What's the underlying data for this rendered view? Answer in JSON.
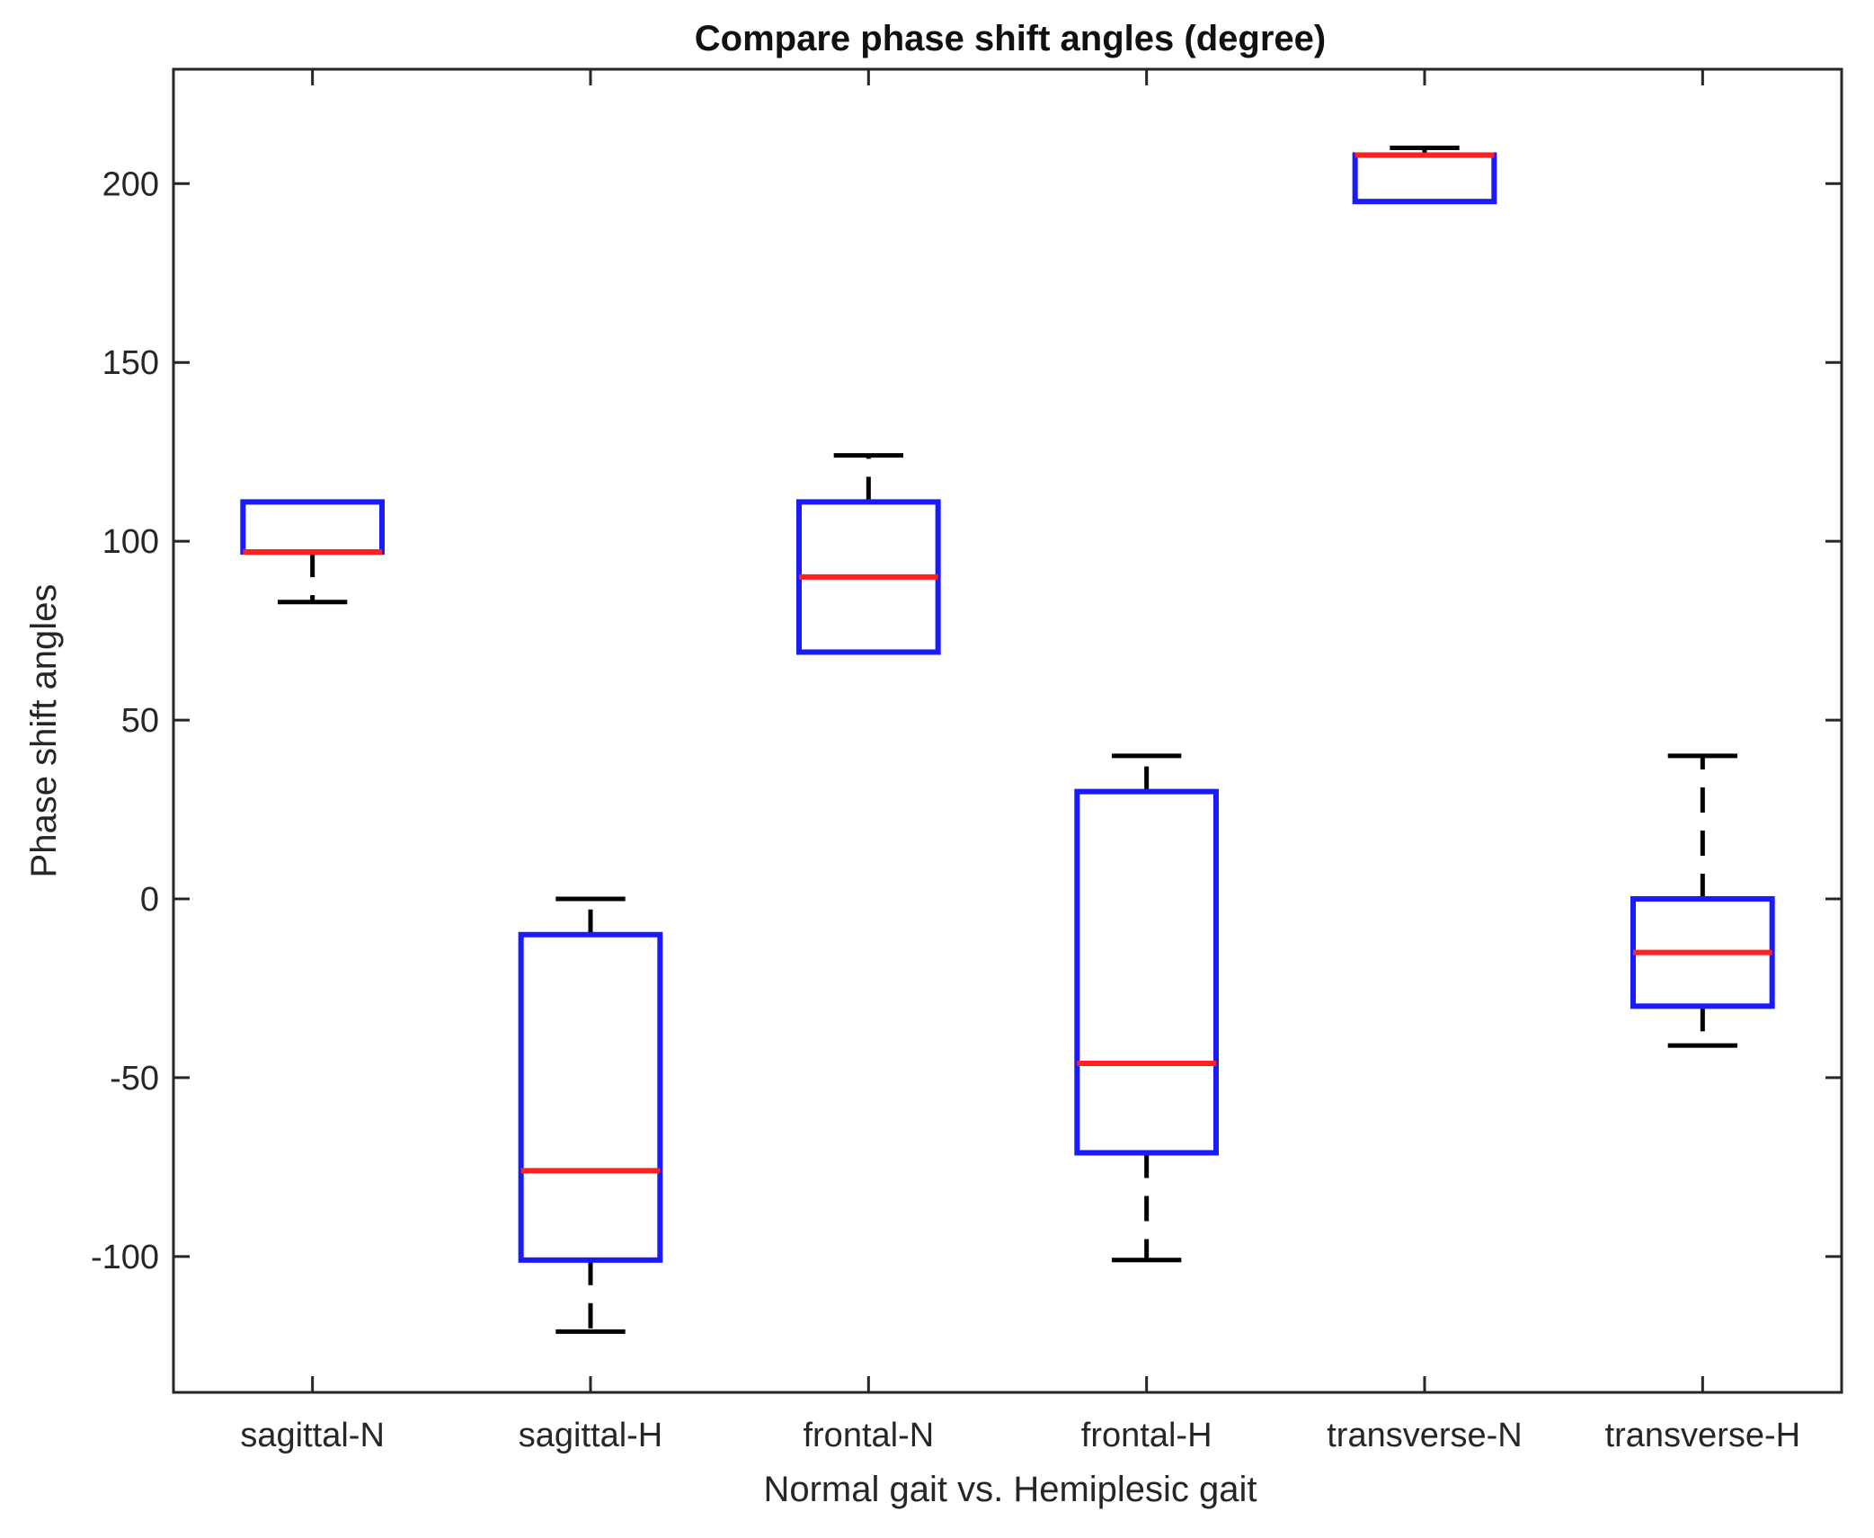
{
  "chart_data": {
    "type": "box",
    "title": "Compare phase shift angles (degree)",
    "xlabel": "Normal gait vs. Hemiplesic gait",
    "ylabel": "Phase shift angles",
    "ylim": [
      -138,
      232
    ],
    "yticks": [
      -100,
      -50,
      0,
      50,
      100,
      150,
      200
    ],
    "ytick_labels": [
      "-100",
      "-50",
      "0",
      "50",
      "100",
      "150",
      "200"
    ],
    "categories": [
      "sagittal-N",
      "sagittal-H",
      "frontal-N",
      "frontal-H",
      "transverse-N",
      "transverse-H"
    ],
    "boxes": [
      {
        "name": "sagittal-N",
        "whisker_low": 83,
        "q1": 97,
        "median": 97,
        "q3": 111,
        "whisker_high": 111
      },
      {
        "name": "sagittal-H",
        "whisker_low": -121,
        "q1": -101,
        "median": -76,
        "q3": -10,
        "whisker_high": 0
      },
      {
        "name": "frontal-N",
        "whisker_low": 69,
        "q1": 69,
        "median": 90,
        "q3": 111,
        "whisker_high": 124
      },
      {
        "name": "frontal-H",
        "whisker_low": -101,
        "q1": -71,
        "median": -46,
        "q3": 30,
        "whisker_high": 40
      },
      {
        "name": "transverse-N",
        "whisker_low": 195,
        "q1": 195,
        "median": 208,
        "q3": 208,
        "whisker_high": 210
      },
      {
        "name": "transverse-H",
        "whisker_low": -41,
        "q1": -30,
        "median": -15,
        "q3": 0,
        "whisker_high": 40
      }
    ],
    "colors": {
      "box": "#1a1aff",
      "median": "#ff2020",
      "whisker": "#000000",
      "axis": "#262626",
      "text": "#262626"
    },
    "grid": false,
    "box_style": "closed"
  }
}
